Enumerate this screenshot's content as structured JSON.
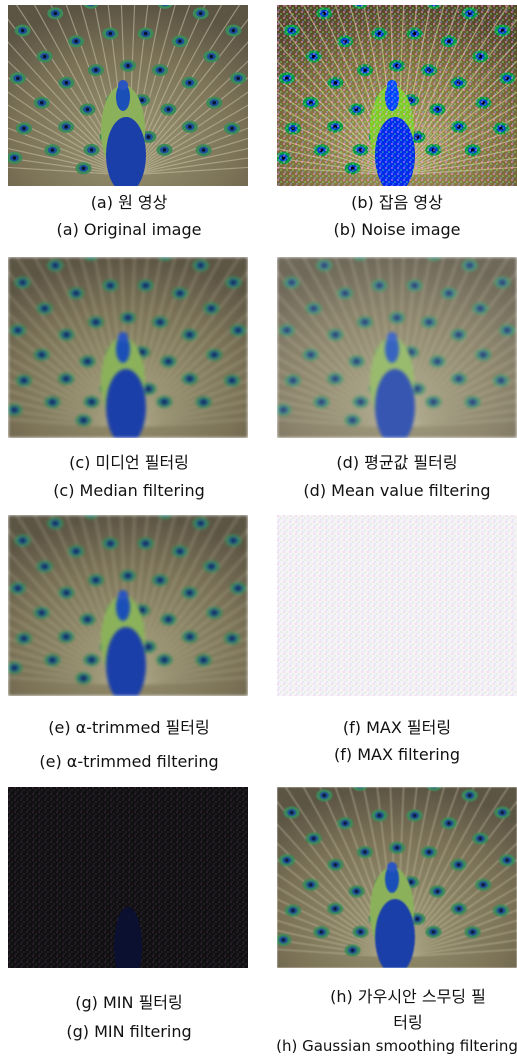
{
  "panels": [
    {
      "caption_ko": "(a) 원 영상",
      "caption_en": "(a) Original image"
    },
    {
      "caption_ko": "(b) 잡음 영상",
      "caption_en": "(b) Noise image"
    },
    {
      "caption_ko": "(c) 미디언 필터링",
      "caption_en": "(c) Median filtering"
    },
    {
      "caption_ko": "(d) 평균값 필터링",
      "caption_en": "(d) Mean value filtering"
    },
    {
      "caption_ko": "(e) α-trimmed 필터링",
      "caption_en": "(e) α-trimmed filtering"
    },
    {
      "caption_ko": "(f) MAX 필터링",
      "caption_en": "(f) MAX filtering"
    },
    {
      "caption_ko": "(g) MIN 필터링",
      "caption_en": "(g) MIN filtering"
    },
    {
      "caption_ko": "(h) 가우시안 스무딩 필터링",
      "caption_en": "(h) Gaussian smoothing filtering"
    }
  ]
}
